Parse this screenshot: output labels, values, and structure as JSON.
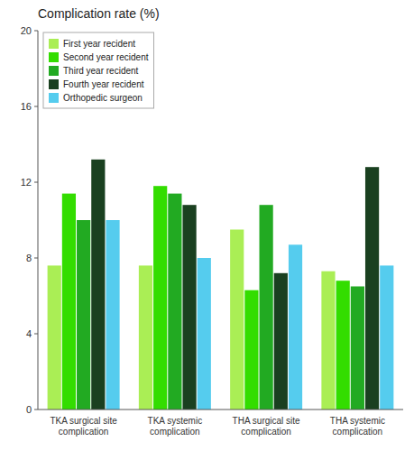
{
  "chart_data": {
    "type": "bar",
    "title": "Complication rate (%)",
    "categories": [
      "TKA surgical site\ncomplication",
      "TKA systemic\ncomplication",
      "THA surgical site\ncomplication",
      "THA systemic\ncomplication"
    ],
    "series": [
      {
        "name": "First year recident",
        "color": "#aaee55",
        "values": [
          7.6,
          7.6,
          9.5,
          7.3
        ]
      },
      {
        "name": "Second year recident",
        "color": "#33dd00",
        "values": [
          11.4,
          11.8,
          6.3,
          6.8
        ]
      },
      {
        "name": "Third year recident",
        "color": "#22aa22",
        "values": [
          10.0,
          11.4,
          10.8,
          6.5
        ]
      },
      {
        "name": "Fourth year recident",
        "color": "#1a4020",
        "values": [
          13.2,
          10.8,
          7.2,
          12.8
        ]
      },
      {
        "name": "Orthopedic surgeon",
        "color": "#55ccee",
        "values": [
          10.0,
          8.0,
          8.7,
          7.6
        ]
      }
    ],
    "ylim": [
      0,
      20
    ],
    "yticks": [
      0,
      4,
      8,
      12,
      16,
      20
    ],
    "grid": false,
    "legend": "upper left"
  }
}
